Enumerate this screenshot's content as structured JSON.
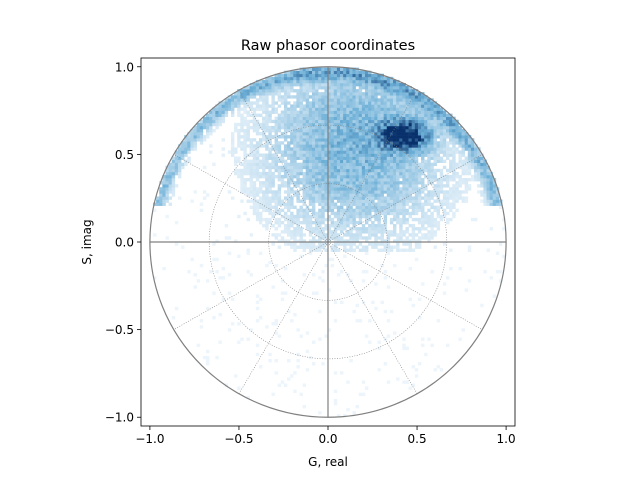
{
  "chart_data": {
    "type": "heatmap",
    "title": "Raw phasor coordinates",
    "xlabel": "G, real",
    "ylabel": "S, imag",
    "xlim": [
      -1.05,
      1.05
    ],
    "ylim": [
      -1.05,
      1.05
    ],
    "xticks": [
      -1.0,
      -0.5,
      0.0,
      0.5,
      1.0
    ],
    "yticks": [
      -1.0,
      -0.5,
      0.0,
      0.5,
      1.0
    ],
    "xtick_labels": [
      "−1.0",
      "−0.5",
      "0.0",
      "0.5",
      "1.0"
    ],
    "ytick_labels": [
      "−1.0",
      "−0.5",
      "0.0",
      "0.5",
      "1.0"
    ],
    "colormap": "Blues",
    "grid": "polar",
    "polar_grid": {
      "unit_circle_radius": 1.0,
      "inner_circle_radii": [
        0.333,
        0.667
      ],
      "radial_spoke_angles_deg": [
        30,
        60,
        120,
        150,
        210,
        240,
        300,
        330
      ],
      "axis_lines": [
        "x=0",
        "y=0"
      ]
    },
    "density": {
      "peak_center": [
        0.43,
        0.61
      ],
      "peak_sigma_g": 0.09,
      "peak_sigma_s": 0.055,
      "diffuse_center": [
        0.15,
        0.55
      ],
      "diffuse_spread": 0.35,
      "bin_width": 0.0175,
      "max_radius": 1.0
    },
    "colors": {
      "low": "#f7fbff",
      "mid": "#6baed6",
      "high": "#08306b",
      "grid_line": "#808080",
      "axes": "#000000"
    }
  }
}
